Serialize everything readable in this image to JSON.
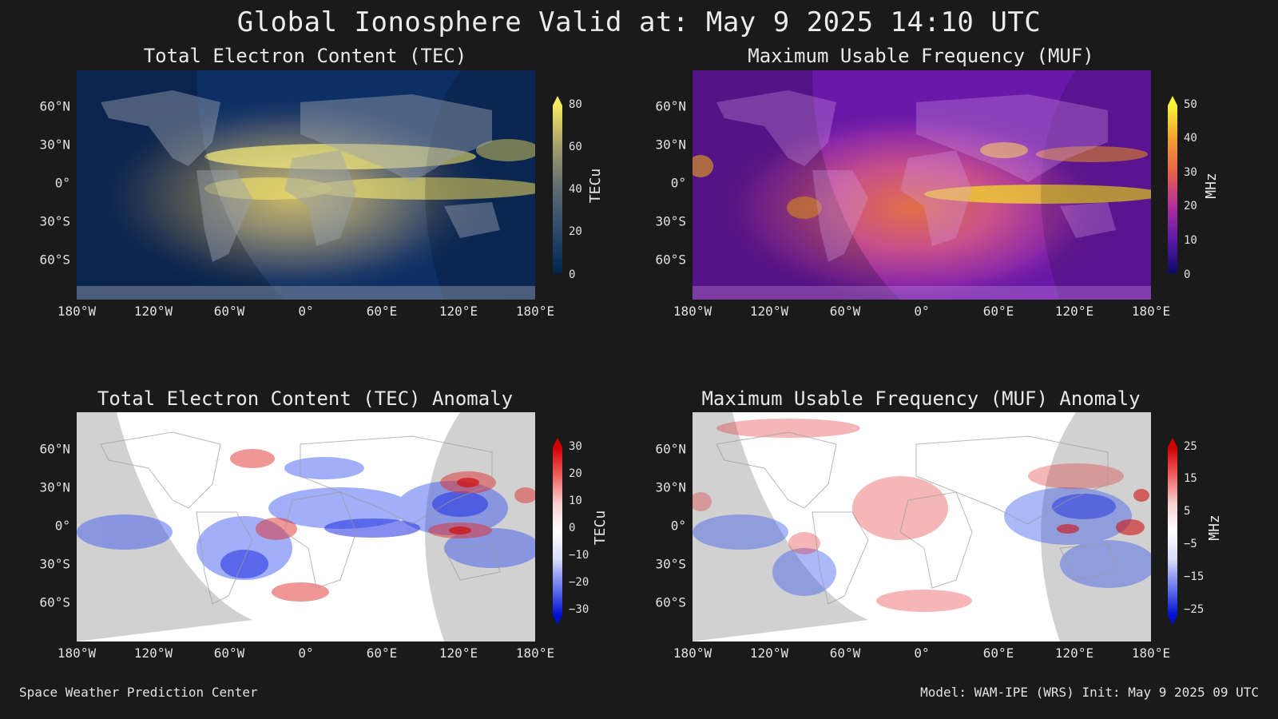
{
  "title": "Global Ionosphere Valid at: May 9 2025 14:10 UTC",
  "footer": {
    "left": "Space Weather Prediction Center",
    "right": "Model: WAM-IPE (WRS) Init: May 9 2025 09 UTC"
  },
  "lat_ticks": [
    "60°N",
    "30°N",
    "0°",
    "30°S",
    "60°S"
  ],
  "lon_ticks": [
    "180°W",
    "120°W",
    "60°W",
    "0°",
    "60°E",
    "120°E",
    "180°E"
  ],
  "panels": {
    "tec": {
      "title": "Total Electron Content (TEC)",
      "colorbar_label": "TECu",
      "colorbar_ticks": [
        "80",
        "60",
        "40",
        "20",
        "0"
      ],
      "colors": {
        "low": "#0a2a5e",
        "mid": "#6c7a80",
        "high": "#f3ea7a"
      }
    },
    "muf": {
      "title": "Maximum Usable Frequency (MUF)",
      "colorbar_label": "MHz",
      "colorbar_ticks": [
        "50",
        "40",
        "30",
        "20",
        "10",
        "0"
      ],
      "colors": {
        "low": "#1a0a7a",
        "mid": "#b83aa0",
        "high": "#f6f23a"
      }
    },
    "tec_anom": {
      "title": "Total Electron Content (TEC) Anomaly",
      "colorbar_label": "TECu",
      "colorbar_ticks": [
        "30",
        "20",
        "10",
        "0",
        "−10",
        "−20",
        "−30"
      ],
      "colors": {
        "low": "#0010d0",
        "mid": "#ffffff",
        "high": "#d00000"
      }
    },
    "muf_anom": {
      "title": "Maximum Usable Frequency (MUF) Anomaly",
      "colorbar_label": "MHz",
      "colorbar_ticks": [
        "25",
        "15",
        "5",
        "−5",
        "−15",
        "−25"
      ],
      "colors": {
        "low": "#0010d0",
        "mid": "#ffffff",
        "high": "#d00000"
      }
    }
  }
}
